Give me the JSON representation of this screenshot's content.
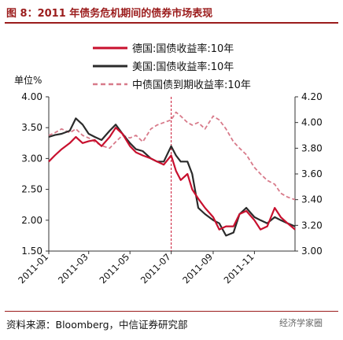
{
  "title": "图 8：2011 年债务危机期间的债券市场表现",
  "source": "资料来源：Bloomberg，中信证券研究部",
  "watermark": "经济学家圈",
  "chart_data": {
    "type": "line",
    "ylabel_left": "单位%",
    "y_left_ticks": [
      "4.00",
      "3.50",
      "3.00",
      "2.50",
      "2.00",
      "1.50"
    ],
    "y_right_ticks": [
      "4.20",
      "4.00",
      "3.80",
      "3.60",
      "3.40",
      "3.20",
      "3.00"
    ],
    "ylim_left": [
      1.5,
      4.0
    ],
    "ylim_right": [
      3.0,
      4.2
    ],
    "x_ticks": [
      "2011-01",
      "2011-03",
      "2011-05",
      "2011-07",
      "2011-09",
      "2011-11"
    ],
    "event_line_x": "2011-07",
    "legend_position": "top-right",
    "series": [
      {
        "name": "德国:国债收益率:10年",
        "axis": "left",
        "color": "#c8102e",
        "style": "solid",
        "points": [
          [
            "2011-01-01",
            2.95
          ],
          [
            "2011-01-10",
            3.05
          ],
          [
            "2011-01-20",
            3.15
          ],
          [
            "2011-02-01",
            3.25
          ],
          [
            "2011-02-10",
            3.35
          ],
          [
            "2011-02-20",
            3.25
          ],
          [
            "2011-03-01",
            3.28
          ],
          [
            "2011-03-10",
            3.3
          ],
          [
            "2011-03-20",
            3.2
          ],
          [
            "2011-04-01",
            3.35
          ],
          [
            "2011-04-10",
            3.5
          ],
          [
            "2011-04-20",
            3.4
          ],
          [
            "2011-05-01",
            3.2
          ],
          [
            "2011-05-10",
            3.1
          ],
          [
            "2011-05-20",
            3.05
          ],
          [
            "2011-06-01",
            3.0
          ],
          [
            "2011-06-10",
            2.95
          ],
          [
            "2011-06-20",
            2.9
          ],
          [
            "2011-07-01",
            3.05
          ],
          [
            "2011-07-08",
            2.8
          ],
          [
            "2011-07-15",
            2.65
          ],
          [
            "2011-07-25",
            2.75
          ],
          [
            "2011-08-01",
            2.5
          ],
          [
            "2011-08-10",
            2.35
          ],
          [
            "2011-08-20",
            2.2
          ],
          [
            "2011-09-01",
            2.05
          ],
          [
            "2011-09-10",
            1.85
          ],
          [
            "2011-09-20",
            1.9
          ],
          [
            "2011-10-01",
            1.9
          ],
          [
            "2011-10-10",
            2.1
          ],
          [
            "2011-10-20",
            2.15
          ],
          [
            "2011-11-01",
            2.0
          ],
          [
            "2011-11-10",
            1.85
          ],
          [
            "2011-11-20",
            1.9
          ],
          [
            "2011-12-01",
            2.2
          ],
          [
            "2011-12-10",
            2.05
          ],
          [
            "2011-12-20",
            1.95
          ],
          [
            "2011-12-31",
            1.85
          ]
        ]
      },
      {
        "name": "美国:国债收益率:10年",
        "axis": "left",
        "color": "#2b2b2b",
        "style": "solid",
        "points": [
          [
            "2011-01-01",
            3.35
          ],
          [
            "2011-01-10",
            3.38
          ],
          [
            "2011-01-20",
            3.4
          ],
          [
            "2011-02-01",
            3.45
          ],
          [
            "2011-02-10",
            3.65
          ],
          [
            "2011-02-20",
            3.55
          ],
          [
            "2011-03-01",
            3.4
          ],
          [
            "2011-03-10",
            3.35
          ],
          [
            "2011-03-20",
            3.3
          ],
          [
            "2011-04-01",
            3.45
          ],
          [
            "2011-04-10",
            3.55
          ],
          [
            "2011-04-20",
            3.4
          ],
          [
            "2011-05-01",
            3.25
          ],
          [
            "2011-05-10",
            3.15
          ],
          [
            "2011-05-20",
            3.12
          ],
          [
            "2011-06-01",
            3.0
          ],
          [
            "2011-06-10",
            2.95
          ],
          [
            "2011-06-20",
            2.95
          ],
          [
            "2011-07-01",
            3.2
          ],
          [
            "2011-07-08",
            3.05
          ],
          [
            "2011-07-15",
            2.95
          ],
          [
            "2011-07-25",
            2.95
          ],
          [
            "2011-08-01",
            2.75
          ],
          [
            "2011-08-10",
            2.2
          ],
          [
            "2011-08-20",
            2.1
          ],
          [
            "2011-09-01",
            2.0
          ],
          [
            "2011-09-10",
            1.95
          ],
          [
            "2011-09-20",
            1.75
          ],
          [
            "2011-10-01",
            1.8
          ],
          [
            "2011-10-10",
            2.1
          ],
          [
            "2011-10-20",
            2.2
          ],
          [
            "2011-11-01",
            2.05
          ],
          [
            "2011-11-10",
            2.0
          ],
          [
            "2011-11-20",
            1.95
          ],
          [
            "2011-12-01",
            2.05
          ],
          [
            "2011-12-10",
            2.0
          ],
          [
            "2011-12-20",
            1.95
          ],
          [
            "2011-12-31",
            1.9
          ]
        ]
      },
      {
        "name": "中债国债到期收益率:10年",
        "axis": "right",
        "color": "#d87a8a",
        "style": "dashed",
        "points": [
          [
            "2011-01-01",
            3.9
          ],
          [
            "2011-01-10",
            3.92
          ],
          [
            "2011-01-20",
            3.95
          ],
          [
            "2011-02-01",
            3.92
          ],
          [
            "2011-02-10",
            3.95
          ],
          [
            "2011-02-20",
            3.9
          ],
          [
            "2011-03-01",
            3.88
          ],
          [
            "2011-03-10",
            3.85
          ],
          [
            "2011-03-20",
            3.82
          ],
          [
            "2011-04-01",
            3.8
          ],
          [
            "2011-04-10",
            3.85
          ],
          [
            "2011-04-20",
            3.9
          ],
          [
            "2011-05-01",
            3.88
          ],
          [
            "2011-05-10",
            3.9
          ],
          [
            "2011-05-20",
            3.85
          ],
          [
            "2011-06-01",
            3.95
          ],
          [
            "2011-06-10",
            3.98
          ],
          [
            "2011-06-20",
            4.0
          ],
          [
            "2011-07-01",
            4.02
          ],
          [
            "2011-07-08",
            4.08
          ],
          [
            "2011-07-15",
            4.05
          ],
          [
            "2011-07-25",
            4.0
          ],
          [
            "2011-08-01",
            3.98
          ],
          [
            "2011-08-10",
            4.0
          ],
          [
            "2011-08-20",
            3.95
          ],
          [
            "2011-09-01",
            4.05
          ],
          [
            "2011-09-10",
            4.02
          ],
          [
            "2011-09-20",
            3.95
          ],
          [
            "2011-10-01",
            3.85
          ],
          [
            "2011-10-10",
            3.8
          ],
          [
            "2011-10-20",
            3.75
          ],
          [
            "2011-11-01",
            3.65
          ],
          [
            "2011-11-10",
            3.6
          ],
          [
            "2011-11-20",
            3.55
          ],
          [
            "2011-12-01",
            3.52
          ],
          [
            "2011-12-10",
            3.45
          ],
          [
            "2011-12-20",
            3.42
          ],
          [
            "2011-12-31",
            3.4
          ]
        ]
      }
    ]
  }
}
